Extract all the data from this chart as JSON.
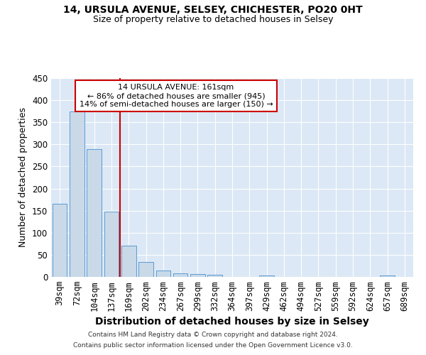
{
  "title1": "14, URSULA AVENUE, SELSEY, CHICHESTER, PO20 0HT",
  "title2": "Size of property relative to detached houses in Selsey",
  "xlabel": "Distribution of detached houses by size in Selsey",
  "ylabel": "Number of detached properties",
  "categories": [
    "39sqm",
    "72sqm",
    "104sqm",
    "137sqm",
    "169sqm",
    "202sqm",
    "234sqm",
    "267sqm",
    "299sqm",
    "332sqm",
    "364sqm",
    "397sqm",
    "429sqm",
    "462sqm",
    "494sqm",
    "527sqm",
    "559sqm",
    "592sqm",
    "624sqm",
    "657sqm",
    "689sqm"
  ],
  "values": [
    165,
    375,
    290,
    148,
    70,
    33,
    15,
    8,
    6,
    5,
    0,
    0,
    4,
    0,
    0,
    0,
    0,
    0,
    0,
    4,
    0
  ],
  "bar_color": "#c9d9e8",
  "bar_edge_color": "#5b9bd5",
  "vline_color": "#cc0000",
  "annotation_line1": "14 URSULA AVENUE: 161sqm",
  "annotation_line2": "← 86% of detached houses are smaller (945)",
  "annotation_line3": "14% of semi-detached houses are larger (150) →",
  "annotation_box_color": "#cc0000",
  "ylim": [
    0,
    450
  ],
  "yticks": [
    0,
    50,
    100,
    150,
    200,
    250,
    300,
    350,
    400,
    450
  ],
  "bg_color": "#dce8f5",
  "grid_color": "#ffffff",
  "footer1": "Contains HM Land Registry data © Crown copyright and database right 2024.",
  "footer2": "Contains public sector information licensed under the Open Government Licence v3.0."
}
